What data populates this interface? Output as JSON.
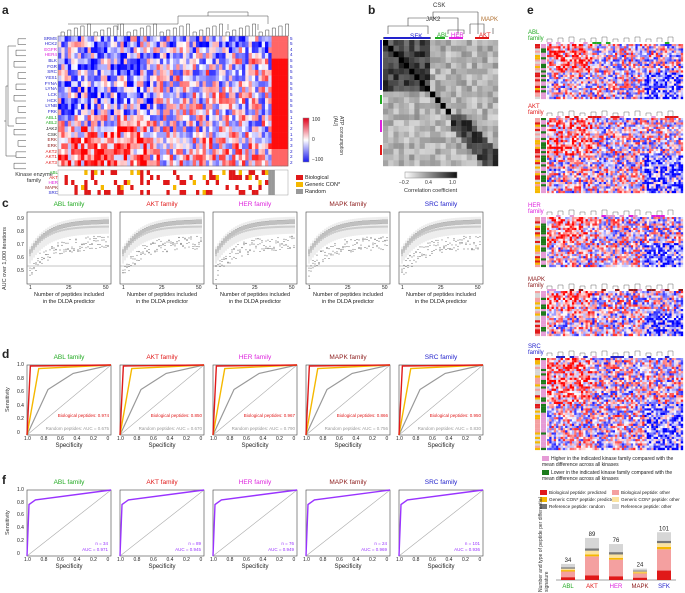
{
  "panel_letters": {
    "a": "a",
    "b": "b",
    "c": "c",
    "d": "d",
    "e": "e",
    "f": "f"
  },
  "colors": {
    "abl": "#22aa22",
    "akt": "#e01919",
    "her": "#dd22dd",
    "mapk": "#8b1a1a",
    "src": "#2222cc",
    "bio": "#e01919",
    "generic": "#f5b800",
    "random": "#999999",
    "gray": "#999999"
  },
  "panel_a": {
    "row_labels": [
      {
        "t": "SRMS",
        "c": "#2222cc"
      },
      {
        "t": "HCK2",
        "c": "#2222cc"
      },
      {
        "t": "EGFR",
        "c": "#dd22dd"
      },
      {
        "t": "HER4",
        "c": "#dd22dd"
      },
      {
        "t": "BLK",
        "c": "#2222cc"
      },
      {
        "t": "FGR",
        "c": "#2222cc"
      },
      {
        "t": "SRC",
        "c": "#2222cc"
      },
      {
        "t": "YES1",
        "c": "#2222cc"
      },
      {
        "t": "FYNA",
        "c": "#2222cc"
      },
      {
        "t": "LYNA",
        "c": "#2222cc"
      },
      {
        "t": "LCK",
        "c": "#2222cc"
      },
      {
        "t": "HCK",
        "c": "#2222cc"
      },
      {
        "t": "LYNB",
        "c": "#2222cc"
      },
      {
        "t": "FRK",
        "c": "#2222cc"
      },
      {
        "t": "ABL1",
        "c": "#22aa22"
      },
      {
        "t": "ABL2",
        "c": "#22aa22"
      },
      {
        "t": "JAK2",
        "c": "#222222"
      },
      {
        "t": "CSK",
        "c": "#222222"
      },
      {
        "t": "ERK",
        "c": "#8b1a1a"
      },
      {
        "t": "ERK",
        "c": "#8b1a1a"
      },
      {
        "t": "AKT2",
        "c": "#e01919"
      },
      {
        "t": "AKT1",
        "c": "#e01919"
      },
      {
        "t": "AKT3",
        "c": "#e01919"
      }
    ],
    "row_nums": [
      "5",
      "5",
      "4",
      "4",
      "5",
      "5",
      "5",
      "5",
      "5",
      "5",
      "5",
      "5",
      "5",
      "5",
      "1",
      "1",
      "2",
      "1",
      "3",
      "3",
      "2",
      "2",
      "2"
    ],
    "colorbar_title": "ATP consumption (AU)",
    "colorbar_ticks": [
      "100",
      "0",
      "−100"
    ],
    "family_title": "Kinase enzyme family",
    "families": [
      {
        "t": "ABL",
        "c": "#22aa22"
      },
      {
        "t": "AKT",
        "c": "#e01919"
      },
      {
        "t": "HER",
        "c": "#dd22dd"
      },
      {
        "t": "MAPK",
        "c": "#8b1a1a"
      },
      {
        "t": "SRC",
        "c": "#2222cc"
      }
    ],
    "legend": [
      {
        "t": "Biological",
        "c": "#e01919"
      },
      {
        "t": "Generic CON*",
        "c": "#f5b800"
      },
      {
        "t": "Random",
        "c": "#999999"
      }
    ]
  },
  "panel_b": {
    "top_labels": [
      {
        "t": "CSK",
        "c": "#222222"
      },
      {
        "t": "JAK2",
        "c": "#222222"
      },
      {
        "t": "MAPK",
        "c": "#b07030"
      }
    ],
    "group_labels": [
      {
        "t": "SFK",
        "c": "#2222cc"
      },
      {
        "t": "ABL",
        "c": "#22aa22"
      },
      {
        "t": "HER",
        "c": "#dd22dd"
      },
      {
        "t": "AKT",
        "c": "#e01919"
      }
    ],
    "cb_ticks": [
      "−0.2",
      "0.4",
      "1.0"
    ],
    "cb_label": "Correlation coefficient"
  },
  "panel_c": {
    "ylabel": "AUC over 1,000 iterations",
    "xlabel1": "Number of peptides included",
    "xlabel2": "in the DLDA predictor",
    "xticks": [
      "1",
      "25",
      "50"
    ],
    "yticks": [
      "0.9",
      "0.8",
      "0.7",
      "0.6",
      "0.5"
    ],
    "titles": [
      {
        "t": "ABL family",
        "c": "#22aa22"
      },
      {
        "t": "AKT family",
        "c": "#e01919"
      },
      {
        "t": "HER family",
        "c": "#dd22dd"
      },
      {
        "t": "MAPK family",
        "c": "#8b1a1a"
      },
      {
        "t": "SRC family",
        "c": "#2222cc"
      }
    ]
  },
  "panel_d": {
    "ylabel": "Sensitivity",
    "xlabel": "Specificity",
    "xticks": [
      "1.0",
      "0.8",
      "0.6",
      "0.4",
      "0.2",
      "0"
    ],
    "yticks": [
      "1.0",
      "0.8",
      "0.6",
      "0.4",
      "0.2",
      "0"
    ],
    "titles": [
      {
        "t": "ABL family",
        "c": "#22aa22"
      },
      {
        "t": "AKT family",
        "c": "#e01919"
      },
      {
        "t": "HER family",
        "c": "#dd22dd"
      },
      {
        "t": "MAPK family",
        "c": "#8b1a1a"
      },
      {
        "t": "SRC family",
        "c": "#2222cc"
      }
    ],
    "bio_auc": [
      "Biological peptides: 0.974",
      "Biological peptides: 0.850",
      "Biological peptides: 0.967",
      "Biological peptides: 0.866",
      "Biological peptides: 0.950"
    ],
    "rand_auc": [
      "Random peptides: AUC = 0.675",
      "Random peptides: AUC = 0.670",
      "Random peptides: AUC = 0.790",
      "Random peptides: AUC = 0.756",
      "Random peptides: AUC = 0.830"
    ]
  },
  "panel_e": {
    "families": [
      {
        "t": "ABL family",
        "c": "#22aa22"
      },
      {
        "t": "AKT family",
        "c": "#e01919"
      },
      {
        "t": "HER family",
        "c": "#dd22dd"
      },
      {
        "t": "MAPK family",
        "c": "#8b1a1a"
      },
      {
        "t": "SRC family",
        "c": "#2222cc"
      }
    ],
    "legend_high": "Higher in the indicated kinase family compared with the mean difference across all kinases",
    "legend_low": "Lower in the indicated kinase family compared with the mean difference across all kinases"
  },
  "panel_f": {
    "ylabel": "Sensitivity",
    "xlabel": "Specificity",
    "titles": [
      {
        "t": "ABL family",
        "c": "#22aa22"
      },
      {
        "t": "AKT family",
        "c": "#e01919"
      },
      {
        "t": "HER family",
        "c": "#dd22dd"
      },
      {
        "t": "MAPK family",
        "c": "#8b1a1a"
      },
      {
        "t": "SRC family",
        "c": "#2222cc"
      }
    ],
    "n": [
      "n = 34",
      "n = 89",
      "n = 76",
      "n = 24",
      "n = 101"
    ],
    "auc": [
      "AUC = 0.971",
      "AUC = 0.945",
      "AUC = 0.949",
      "AUC = 0.969",
      "AUC = 0.936"
    ]
  },
  "bar_legend": [
    {
      "t": "Biological peptide: predicted",
      "c": "#e01919"
    },
    {
      "t": "Biological peptide: other",
      "c": "#f4a0a0"
    },
    {
      "t": "Generic CON* peptide: predicted",
      "c": "#f5b800"
    },
    {
      "t": "Generic CON* peptide: other",
      "c": "#fbe3a0"
    },
    {
      "t": "Reference peptide: random",
      "c": "#777777"
    },
    {
      "t": "Reference peptide: other",
      "c": "#d6d6d6"
    }
  ],
  "bar_ylabel": "Number and type of peptide per differential signature",
  "chart_data": {
    "type": "bar",
    "title": "Number and type of peptide per differential signature",
    "categories": [
      "ABL",
      "AKT",
      "HER",
      "MAPK",
      "SFK"
    ],
    "category_colors": [
      "#22aa22",
      "#e01919",
      "#dd22dd",
      "#8b1a1a",
      "#2222cc"
    ],
    "totals": [
      34,
      89,
      76,
      24,
      101
    ],
    "ylim": [
      0,
      110
    ],
    "stacked": true,
    "series": [
      {
        "name": "Biological peptide: predicted",
        "values": [
          6,
          10,
          8,
          5,
          20
        ]
      },
      {
        "name": "Biological peptide: other",
        "values": [
          12,
          40,
          35,
          9,
          45
        ]
      },
      {
        "name": "Generic CON* peptide: predicted",
        "values": [
          3,
          4,
          4,
          2,
          5
        ]
      },
      {
        "name": "Generic CON* peptide: other",
        "values": [
          3,
          8,
          7,
          2,
          8
        ]
      },
      {
        "name": "Reference peptide: random",
        "values": [
          3,
          5,
          5,
          2,
          5
        ]
      },
      {
        "name": "Reference peptide: other",
        "values": [
          7,
          22,
          17,
          4,
          18
        ]
      }
    ]
  }
}
